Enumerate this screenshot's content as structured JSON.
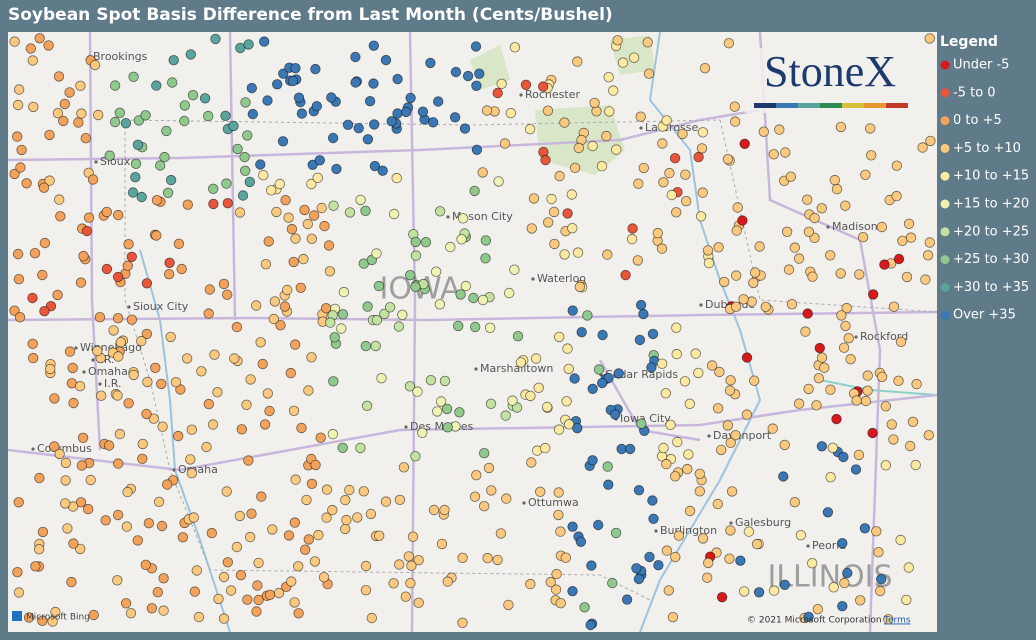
{
  "header": {
    "title": "Soybean Spot Basis Difference from Last Month (Cents/Bushel)"
  },
  "legend": {
    "title": "Legend",
    "items": [
      {
        "label": "Under -5",
        "color": "#d7191c"
      },
      {
        "label": "-5 to 0",
        "color": "#e9553a"
      },
      {
        "label": "0 to +5",
        "color": "#f3a25b"
      },
      {
        "label": "+5 to +10",
        "color": "#f9c97f"
      },
      {
        "label": "+10 to +15",
        "color": "#fbe9a2"
      },
      {
        "label": "+15 to +20",
        "color": "#eef3b4"
      },
      {
        "label": "+20 to +25",
        "color": "#c3e2a2"
      },
      {
        "label": "+25 to +30",
        "color": "#90c98d"
      },
      {
        "label": "+30 to +35",
        "color": "#5aa49e"
      },
      {
        "label": "Over +35",
        "color": "#3a77b3"
      }
    ]
  },
  "map": {
    "logo": "StoneX",
    "state_labels": [
      "IOWA",
      "ILLINOIS"
    ],
    "places": [
      "Brookings",
      "Rochester",
      "La Crosse",
      "Mason City",
      "Madison",
      "Sioux City",
      "Waterloo",
      "Dubuque",
      "Rockford",
      "Winnebago",
      "I.R.",
      "Omaha",
      "I.R.",
      "Marshalltown",
      "Cedar Rapids",
      "Iowa City",
      "Davenport",
      "Columbus",
      "Omaha",
      "Des Moines",
      "Ottumwa",
      "Burlington",
      "Galesburg",
      "Peoria",
      "Sioux"
    ],
    "provider": "Microsoft Bing",
    "copyright": "© 2021 Microsoft Corporation",
    "terms": "Terms"
  }
}
